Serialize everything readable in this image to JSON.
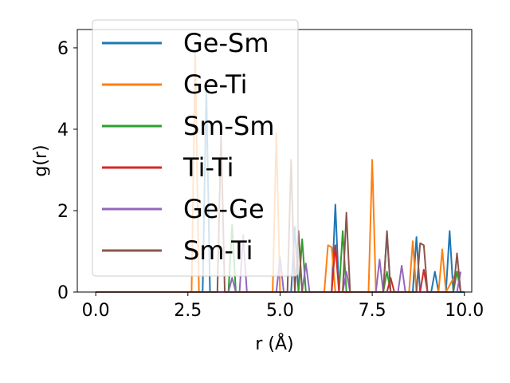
{
  "chart_data": {
    "type": "line",
    "xlabel": "r (Å)",
    "ylabel": "g(r)",
    "xlim": [
      -0.5,
      10.2
    ],
    "ylim": [
      0,
      6.45
    ],
    "xticks": [
      0.0,
      2.5,
      5.0,
      7.5,
      10.0
    ],
    "xtick_labels": [
      "0.0",
      "2.5",
      "5.0",
      "7.5",
      "10.0"
    ],
    "yticks": [
      0,
      2,
      4,
      6
    ],
    "ytick_labels": [
      "0",
      "2",
      "4",
      "6"
    ],
    "grid": false,
    "legend_position": "upper-left",
    "series": [
      {
        "name": "Ge-Sm",
        "color": "#1f77b4",
        "x": [
          0.0,
          2.9,
          3.0,
          3.1,
          3.2,
          5.3,
          5.4,
          5.5,
          6.4,
          6.5,
          6.6,
          6.9,
          7.0,
          7.8,
          7.9,
          8.0,
          8.1,
          8.6,
          8.7,
          8.8,
          9.1,
          9.2,
          9.3,
          9.5,
          9.6,
          9.7,
          10.0
        ],
        "y": [
          0,
          0,
          5.0,
          0,
          0,
          0,
          1.6,
          0,
          0,
          2.15,
          0,
          0,
          0,
          0,
          1.45,
          0,
          0,
          0,
          1.35,
          0,
          0,
          0.5,
          0,
          0,
          1.5,
          0,
          0
        ]
      },
      {
        "name": "Ge-Ti",
        "color": "#ff7f0e",
        "x": [
          0.0,
          2.6,
          2.7,
          2.8,
          2.9,
          4.8,
          4.9,
          5.0,
          6.2,
          6.3,
          6.4,
          6.5,
          7.4,
          7.5,
          7.6,
          8.5,
          8.6,
          8.7,
          9.3,
          9.4,
          9.5,
          9.8,
          9.9
        ],
        "y": [
          0,
          0,
          5.9,
          0,
          0,
          0,
          3.9,
          0,
          0,
          1.15,
          1.1,
          0,
          0,
          3.25,
          0,
          0,
          1.25,
          0,
          0,
          1.05,
          0,
          0.5,
          0.45
        ]
      },
      {
        "name": "Sm-Sm",
        "color": "#2ca02c",
        "x": [
          0.0,
          3.6,
          3.7,
          3.8,
          3.9,
          5.5,
          5.6,
          5.7,
          6.6,
          6.7,
          6.8,
          7.8,
          7.9,
          8.0,
          9.7,
          9.8,
          9.9
        ],
        "y": [
          0,
          0,
          1.65,
          0,
          0,
          0,
          1.3,
          0,
          0,
          1.5,
          0,
          0,
          0.5,
          0,
          0,
          0.5,
          0
        ]
      },
      {
        "name": "Ti-Ti",
        "color": "#d62728",
        "x": [
          0.0,
          6.4,
          6.5,
          6.6,
          7.9,
          8.0,
          8.1,
          8.8,
          8.9,
          9.0
        ],
        "y": [
          0,
          0,
          1.15,
          0,
          0,
          0.35,
          0,
          0,
          0.55,
          0
        ]
      },
      {
        "name": "Ge-Ge",
        "color": "#9467bd",
        "x": [
          0.0,
          3.6,
          3.7,
          3.8,
          3.9,
          4.0,
          4.1,
          4.9,
          5.0,
          5.1,
          5.6,
          5.7,
          5.8,
          6.7,
          6.8,
          6.9,
          7.6,
          7.7,
          7.8,
          8.2,
          8.3,
          8.4,
          9.8,
          9.9
        ],
        "y": [
          0,
          0,
          0.35,
          0,
          0,
          1.4,
          0,
          0,
          0.85,
          0,
          0,
          0.7,
          0,
          0,
          0.5,
          0,
          0,
          0.8,
          0,
          0,
          0.65,
          0,
          0,
          0.5
        ]
      },
      {
        "name": "Sm-Ti",
        "color": "#8c564b",
        "x": [
          0.0,
          3.3,
          3.4,
          3.5,
          3.6,
          5.2,
          5.3,
          5.4,
          5.5,
          5.6,
          6.7,
          6.8,
          6.9,
          7.8,
          7.9,
          8.0,
          8.7,
          8.8,
          8.9,
          9.0,
          9.7,
          9.8,
          9.9
        ],
        "y": [
          0,
          0,
          3.85,
          0,
          0,
          0,
          3.25,
          0,
          1.5,
          0,
          0,
          1.95,
          0,
          0,
          1.5,
          0,
          0,
          1.2,
          1.15,
          0,
          0,
          0.95,
          0
        ]
      }
    ]
  }
}
